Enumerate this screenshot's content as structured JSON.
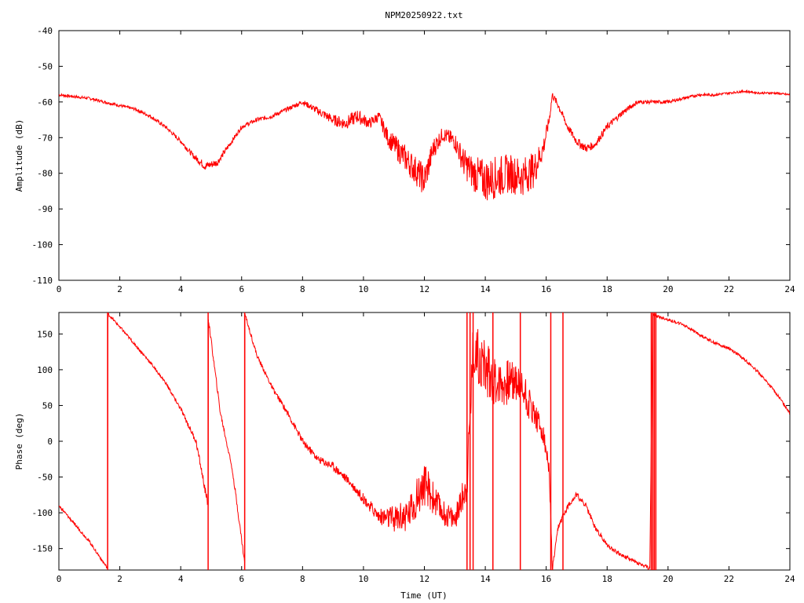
{
  "chart_data": [
    {
      "type": "line",
      "title": "NPM20250922.txt",
      "xlabel": "",
      "ylabel": "Amplitude (dB)",
      "xlim": [
        0,
        24
      ],
      "ylim": [
        -110,
        -40
      ],
      "xticks": [
        "0",
        "2",
        "4",
        "6",
        "8",
        "10",
        "12",
        "14",
        "16",
        "18",
        "20",
        "22",
        "24"
      ],
      "yticks": [
        "-40",
        "-50",
        "-60",
        "-70",
        "-80",
        "-90",
        "-100",
        "-110"
      ],
      "grid": false,
      "series": [
        {
          "color": "#ff0000",
          "x": [
            0,
            0.5,
            1,
            1.5,
            2,
            2.5,
            3,
            3.5,
            4,
            4.4,
            4.8,
            5.2,
            5.6,
            6,
            6.5,
            7,
            7.5,
            8,
            8.2,
            8.6,
            9,
            9.4,
            9.8,
            10.2,
            10.5,
            10.8,
            11.2,
            11.6,
            12,
            12.3,
            12.6,
            13,
            13.3,
            13.6,
            14,
            14.4,
            14.8,
            15.2,
            15.6,
            15.9,
            16.1,
            16.2,
            16.4,
            16.7,
            17,
            17.3,
            17.6,
            18,
            18.5,
            19,
            19.5,
            20,
            20.5,
            21,
            21.5,
            22,
            22.5,
            23,
            23.5,
            24
          ],
          "y": [
            -58,
            -58.5,
            -59,
            -60,
            -61,
            -62,
            -64,
            -67,
            -71,
            -75,
            -78,
            -77,
            -72,
            -67,
            -65,
            -64,
            -62,
            -60,
            -61,
            -63,
            -65,
            -66,
            -64,
            -66,
            -64,
            -70,
            -74,
            -78,
            -82,
            -73,
            -69,
            -71,
            -77,
            -80,
            -82,
            -81,
            -80,
            -81,
            -79,
            -73,
            -65,
            -58,
            -61,
            -67,
            -71,
            -73,
            -72,
            -67,
            -63,
            -60,
            -60,
            -60,
            -59,
            -58,
            -58,
            -57.5,
            -57,
            -57.5,
            -57.5,
            -58
          ],
          "noise": [
            0.4,
            0.4,
            0.4,
            0.4,
            0.4,
            0.4,
            0.5,
            0.5,
            0.6,
            0.8,
            1.2,
            1.0,
            0.7,
            0.6,
            0.6,
            0.6,
            0.6,
            0.7,
            0.8,
            1.2,
            1.5,
            1.8,
            2.0,
            1.5,
            1.5,
            2.5,
            3.5,
            4.0,
            4.5,
            3.0,
            2.0,
            2.5,
            4.0,
            5.0,
            6.0,
            6.0,
            5.5,
            5.5,
            5.0,
            3.0,
            1.5,
            1.0,
            1.0,
            1.0,
            1.2,
            1.2,
            1.0,
            1.0,
            0.8,
            0.6,
            0.5,
            0.5,
            0.4,
            0.4,
            0.4,
            0.3,
            0.3,
            0.3,
            0.3,
            0.3
          ]
        }
      ]
    },
    {
      "type": "line",
      "title": "",
      "xlabel": "Time (UT)",
      "ylabel": "Phase (deg)",
      "xlim": [
        0,
        24
      ],
      "ylim": [
        -180,
        180
      ],
      "xticks": [
        "0",
        "2",
        "4",
        "6",
        "8",
        "10",
        "12",
        "14",
        "16",
        "18",
        "20",
        "22",
        "24"
      ],
      "yticks": [
        "150",
        "100",
        "50",
        "0",
        "-50",
        "-100",
        "-150"
      ],
      "grid": false,
      "series": [
        {
          "color": "#ff0000",
          "x": [
            0,
            0.5,
            1,
            1.6,
            1.61,
            2,
            2.5,
            3,
            3.5,
            4,
            4.5,
            4.9,
            4.91,
            5.3,
            5.7,
            6.1,
            6.11,
            6.5,
            7,
            7.5,
            8,
            8.5,
            9,
            9.5,
            10,
            10.5,
            11,
            11.5,
            12,
            12.5,
            13,
            13.4,
            13.6,
            14,
            14.5,
            15,
            15.3,
            15.6,
            15.9,
            16.1,
            16.2,
            16.4,
            16.6,
            16.8,
            17,
            17.3,
            17.6,
            18,
            18.5,
            19,
            19.4,
            19.5,
            19.6,
            20,
            20.5,
            21,
            21.5,
            22,
            22.5,
            23,
            23.5,
            24
          ],
          "y": [
            -90,
            -115,
            -140,
            -178,
            178,
            160,
            135,
            110,
            82,
            45,
            0,
            -90,
            170,
            40,
            -40,
            -170,
            178,
            120,
            75,
            40,
            0,
            -25,
            -35,
            -55,
            -80,
            -105,
            -110,
            -100,
            -60,
            -95,
            -110,
            -60,
            130,
            100,
            80,
            85,
            70,
            40,
            10,
            -40,
            -180,
            -120,
            -100,
            -85,
            -75,
            -90,
            -120,
            -145,
            -160,
            -170,
            -178,
            178,
            175,
            170,
            163,
            150,
            138,
            130,
            115,
            95,
            70,
            40
          ],
          "noise": [
            2,
            2,
            2,
            2,
            2,
            2,
            2,
            2,
            2,
            3,
            4,
            6,
            4,
            4,
            4,
            4,
            3,
            3,
            3,
            4,
            5,
            5,
            6,
            6,
            7,
            10,
            20,
            25,
            30,
            20,
            15,
            25,
            40,
            40,
            35,
            30,
            30,
            20,
            15,
            10,
            5,
            5,
            4,
            4,
            4,
            4,
            4,
            3,
            3,
            3,
            3,
            2,
            2,
            2,
            2,
            2,
            2,
            2,
            2,
            2,
            2,
            2
          ],
          "wraps_at_x": [
            1.6,
            4.9,
            6.1,
            13.4,
            13.5,
            13.6,
            14.25,
            15.15,
            16.15,
            16.55,
            19.45,
            19.5,
            19.55,
            19.6
          ]
        }
      ]
    }
  ]
}
